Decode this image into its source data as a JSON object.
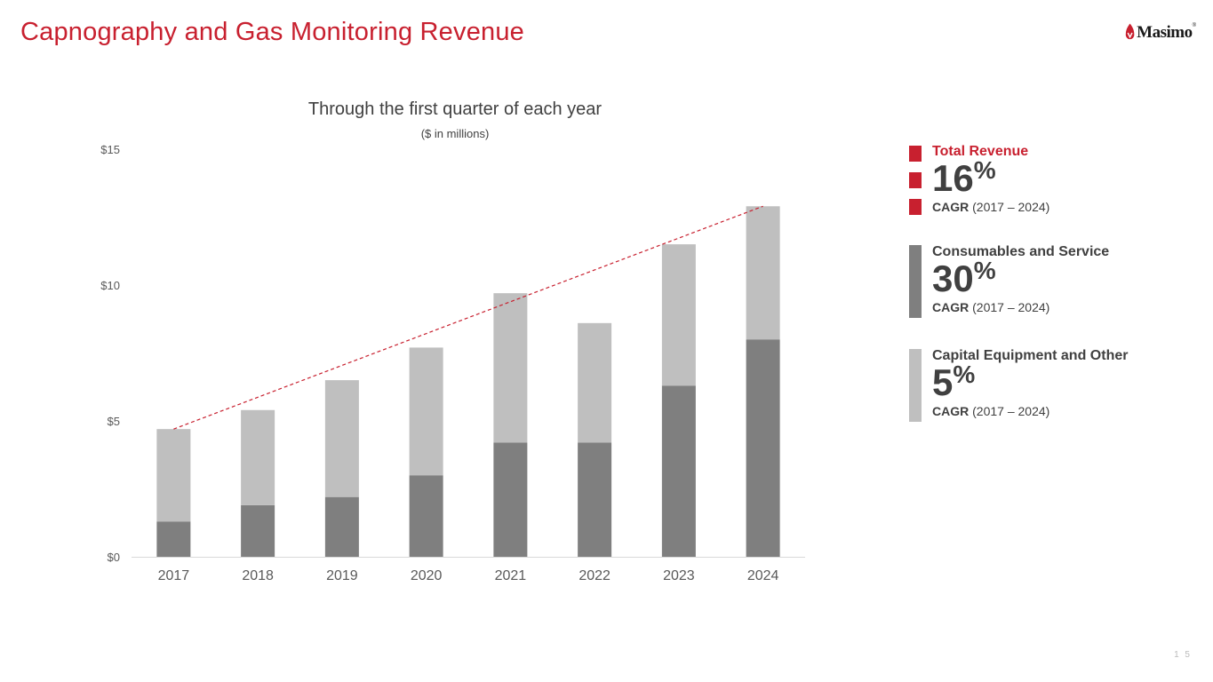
{
  "slide": {
    "title": "Capnography and Gas Monitoring Revenue",
    "logo_text": "Masimo",
    "logo_registered": "®",
    "page_number": "1 5"
  },
  "legend": {
    "total": {
      "label": "Total Revenue",
      "value": "16",
      "unit": "%",
      "cagr_bold": "CAGR",
      "cagr_range": "(2017 – 2024)"
    },
    "consumables": {
      "label": "Consumables and Service",
      "value": "30",
      "unit": "%",
      "cagr_bold": "CAGR",
      "cagr_range": "(2017 – 2024)"
    },
    "capital": {
      "label": "Capital Equipment and Other",
      "value": "5",
      "unit": "%",
      "cagr_bold": "CAGR",
      "cagr_range": "(2017 – 2024)"
    }
  },
  "colors": {
    "accent": "#c8202f",
    "consumables": "#7f7f7f",
    "capital": "#bfbfbf",
    "text": "#404040",
    "axis_text": "#595959"
  },
  "chart_data": {
    "type": "bar",
    "stacked": true,
    "title": "Through the first quarter of each year",
    "subtitle": "($ in millions)",
    "categories": [
      "2017",
      "2018",
      "2019",
      "2020",
      "2021",
      "2022",
      "2023",
      "2024"
    ],
    "series": [
      {
        "name": "Consumables and Service",
        "values": [
          1.3,
          1.9,
          2.2,
          3.0,
          4.2,
          4.2,
          6.3,
          8.0
        ]
      },
      {
        "name": "Capital Equipment and Other",
        "values": [
          3.4,
          3.5,
          4.3,
          4.7,
          5.5,
          4.4,
          5.2,
          4.9
        ]
      }
    ],
    "trendline": {
      "name": "Total Revenue trend",
      "from": "2017",
      "to": "2024",
      "style": "dashed"
    },
    "yticks": [
      0,
      5,
      10,
      15
    ],
    "ytick_labels": [
      "$0",
      "$5",
      "$10",
      "$15"
    ],
    "ylim": [
      0,
      15
    ],
    "xlabel": "",
    "ylabel": "",
    "grid": false,
    "legend": "right"
  }
}
